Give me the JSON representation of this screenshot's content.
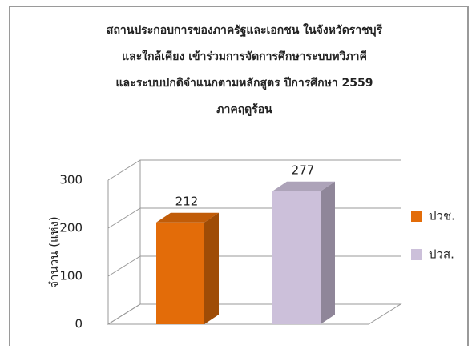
{
  "chart_data": {
    "type": "bar3d",
    "title": [
      "สถานประกอบการของภาครัฐและเอกชน  ในจังหวัดราชบุรี",
      "และใกล้เคียง  เข้าร่วมการจัดการศึกษาระบบทวิภาคี",
      "และระบบปกติจำแนกตามหลักสูตร  ปีการศึกษา  2559",
      "ภาคฤดูร้อน"
    ],
    "y_label": "จำนวน (แห่ง)",
    "categories": [
      null
    ],
    "series": [
      {
        "name": "ปวช.",
        "color": "#e36c09",
        "values": [
          212
        ]
      },
      {
        "name": "ปวส.",
        "color": "#ccc0da",
        "values": [
          277
        ]
      }
    ],
    "ylim": [
      0,
      300
    ],
    "yticks": [
      0,
      100,
      200,
      300
    ],
    "grid": true,
    "legend": "right"
  }
}
